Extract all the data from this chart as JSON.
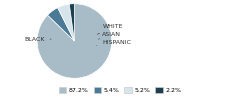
{
  "slices": [
    87.2,
    5.4,
    5.2,
    2.2
  ],
  "labels": [
    "BLACK",
    "WHITE",
    "ASIAN",
    "HISPANIC"
  ],
  "colors": [
    "#a8bcc8",
    "#4a7a96",
    "#d6e4ec",
    "#1e3f52"
  ],
  "legend_labels": [
    "87.2%",
    "5.4%",
    "5.2%",
    "2.2%"
  ],
  "legend_colors": [
    "#a8bcc8",
    "#4a7a96",
    "#d6e4ec",
    "#1e3f52"
  ],
  "startangle": 90,
  "figsize": [
    2.4,
    1.0
  ],
  "dpi": 100
}
